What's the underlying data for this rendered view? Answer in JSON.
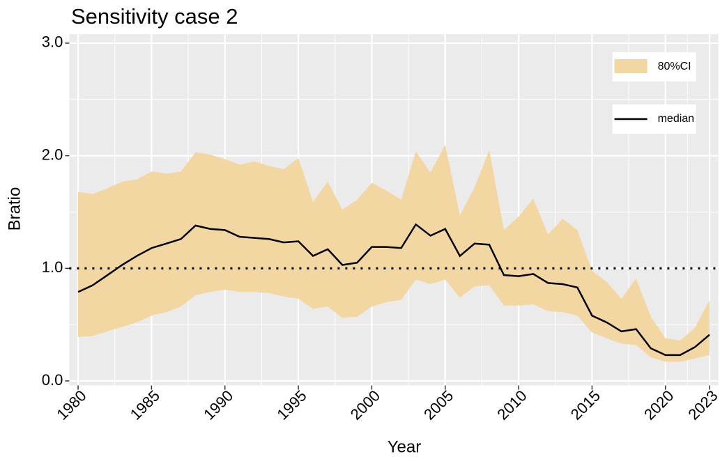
{
  "chart_data": {
    "type": "line",
    "title": "Sensitivity case 2",
    "x_label": "Year",
    "y_label": "Bratio",
    "x": [
      1980,
      1981,
      1982,
      1983,
      1984,
      1985,
      1986,
      1987,
      1988,
      1989,
      1990,
      1991,
      1992,
      1993,
      1994,
      1995,
      1996,
      1997,
      1998,
      1999,
      2000,
      2001,
      2002,
      2003,
      2004,
      2005,
      2006,
      2007,
      2008,
      2009,
      2010,
      2011,
      2012,
      2013,
      2014,
      2015,
      2016,
      2017,
      2018,
      2019,
      2020,
      2021,
      2022,
      2023
    ],
    "series": [
      {
        "name": "80%CI",
        "color": "#f3d7a2",
        "lower": [
          0.39,
          0.4,
          0.44,
          0.48,
          0.52,
          0.58,
          0.61,
          0.66,
          0.76,
          0.79,
          0.81,
          0.79,
          0.79,
          0.78,
          0.75,
          0.73,
          0.64,
          0.66,
          0.56,
          0.57,
          0.66,
          0.7,
          0.72,
          0.9,
          0.86,
          0.9,
          0.74,
          0.84,
          0.85,
          0.67,
          0.67,
          0.68,
          0.62,
          0.61,
          0.58,
          0.43,
          0.38,
          0.33,
          0.32,
          0.21,
          0.17,
          0.17,
          0.2,
          0.23
        ],
        "upper": [
          1.68,
          1.66,
          1.71,
          1.77,
          1.79,
          1.86,
          1.84,
          1.86,
          2.03,
          2.01,
          1.97,
          1.92,
          1.95,
          1.91,
          1.88,
          1.98,
          1.59,
          1.77,
          1.52,
          1.61,
          1.76,
          1.69,
          1.61,
          2.04,
          1.85,
          2.1,
          1.47,
          1.72,
          2.05,
          1.34,
          1.46,
          1.62,
          1.3,
          1.44,
          1.34,
          0.98,
          0.88,
          0.73,
          0.91,
          0.57,
          0.38,
          0.36,
          0.47,
          0.72
        ]
      },
      {
        "name": "median",
        "color": "#000000",
        "values": [
          0.79,
          0.85,
          0.94,
          1.03,
          1.11,
          1.18,
          1.22,
          1.26,
          1.38,
          1.35,
          1.34,
          1.28,
          1.27,
          1.26,
          1.23,
          1.24,
          1.11,
          1.17,
          1.03,
          1.05,
          1.19,
          1.19,
          1.18,
          1.39,
          1.29,
          1.35,
          1.11,
          1.22,
          1.21,
          0.94,
          0.93,
          0.95,
          0.87,
          0.86,
          0.83,
          0.58,
          0.52,
          0.44,
          0.46,
          0.29,
          0.23,
          0.23,
          0.3,
          0.41
        ]
      }
    ],
    "hline": 1,
    "xlim": [
      1979.4,
      2023.6
    ],
    "ylim": [
      -0.04,
      3.08
    ],
    "xticks": [
      1980,
      1985,
      1990,
      1995,
      2000,
      2005,
      2010,
      2015,
      2020,
      2023
    ],
    "yticks": [
      {
        "value": 0,
        "label": "0.0"
      },
      {
        "value": 1,
        "label": "1.0"
      },
      {
        "value": 2,
        "label": "2.0"
      },
      {
        "value": 3,
        "label": "3.0"
      }
    ],
    "grid": true,
    "legend": "top-right"
  }
}
